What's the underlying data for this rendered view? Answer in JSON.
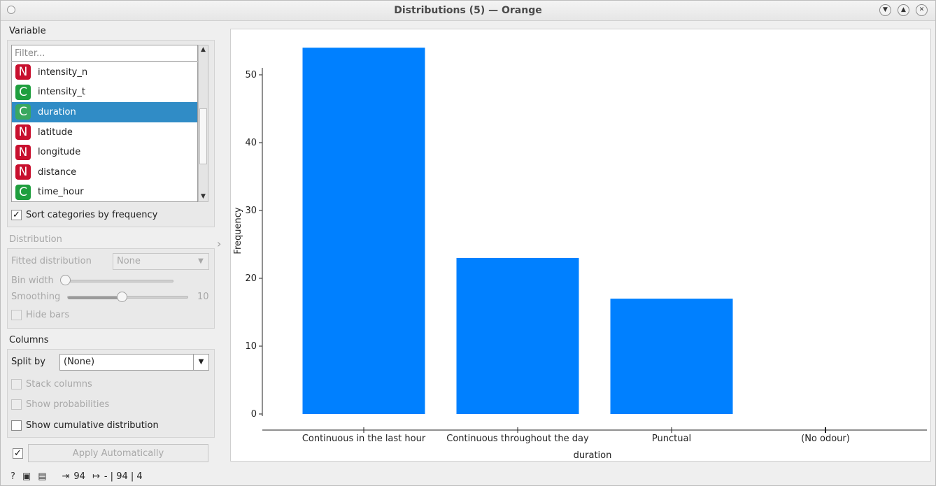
{
  "window": {
    "title": "Distributions (5) — Orange"
  },
  "variable": {
    "section_label": "Variable",
    "filter_placeholder": "Filter...",
    "items": [
      {
        "type": "N",
        "name": "intensity_n",
        "selected": false
      },
      {
        "type": "C",
        "name": "intensity_t",
        "selected": false
      },
      {
        "type": "C",
        "name": "duration",
        "selected": true
      },
      {
        "type": "N",
        "name": "latitude",
        "selected": false
      },
      {
        "type": "N",
        "name": "longitude",
        "selected": false
      },
      {
        "type": "N",
        "name": "distance",
        "selected": false
      },
      {
        "type": "C",
        "name": "time_hour",
        "selected": false
      }
    ],
    "sort_label": "Sort categories by frequency",
    "sort_checked": true
  },
  "distribution": {
    "section_label": "Distribution",
    "fitted_label": "Fitted distribution",
    "fitted_value": "None",
    "bin_width_label": "Bin width",
    "smoothing_label": "Smoothing",
    "smoothing_value": "10",
    "smoothing_fraction": 0.45,
    "bin_width_fraction": 0.0,
    "hide_bars_label": "Hide bars"
  },
  "columns": {
    "section_label": "Columns",
    "split_by_label": "Split by",
    "split_by_value": "(None)",
    "stack_label": "Stack columns",
    "probabilities_label": "Show probabilities",
    "cumulative_label": "Show cumulative distribution"
  },
  "apply": {
    "label": "Apply Automatically",
    "checked": true
  },
  "status": {
    "input_count": "94",
    "output_text": "- | 94 | 4"
  },
  "chart_data": {
    "type": "bar",
    "categories": [
      "Continuous in the last hour",
      "Continuous throughout the day",
      "Punctual",
      "(No odour)"
    ],
    "values": [
      54,
      23,
      17,
      0
    ],
    "xlabel": "duration",
    "ylabel": "Frequency",
    "ylim": [
      0,
      55
    ],
    "yticks": [
      0,
      10,
      20,
      30,
      40,
      50
    ],
    "bar_color": "#0080ff",
    "grid": false
  }
}
